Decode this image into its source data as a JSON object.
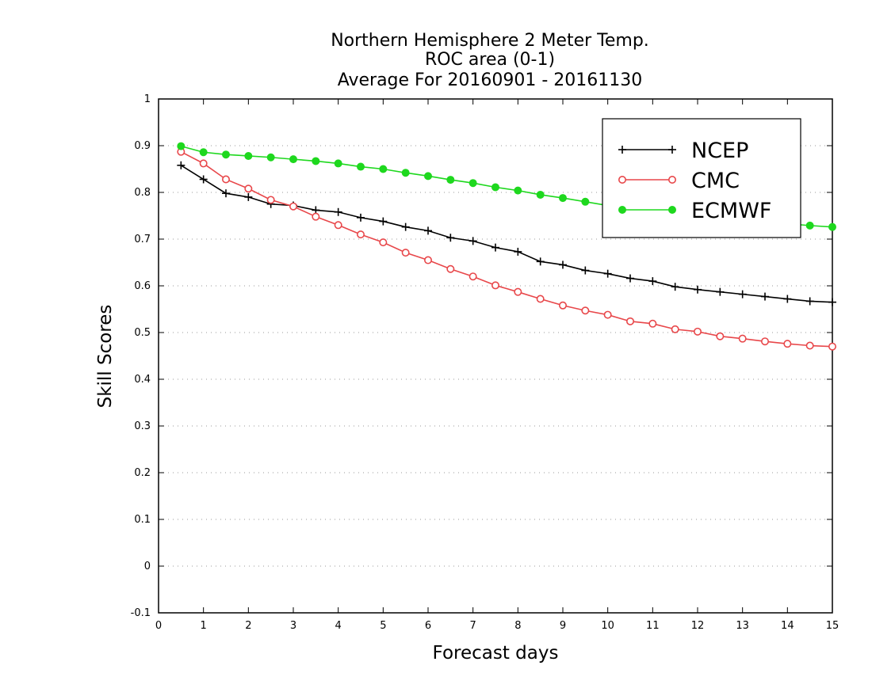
{
  "chart_data": {
    "type": "line",
    "title_lines": [
      "Northern Hemisphere 2 Meter Temp.",
      "ROC area (0-1)",
      "Average For 20160901 - 20161130"
    ],
    "xlabel": "Forecast days",
    "ylabel": "Skill Scores",
    "xlim": [
      0,
      15
    ],
    "ylim": [
      -0.1,
      1
    ],
    "x_ticks": [
      0,
      1,
      2,
      3,
      4,
      5,
      6,
      7,
      8,
      9,
      10,
      11,
      12,
      13,
      14,
      15
    ],
    "x_tick_labels": [
      "0",
      "1",
      "2",
      "3",
      "4",
      "5",
      "6",
      "7",
      "8",
      "9",
      "10",
      "11",
      "12",
      "13",
      "14",
      "15"
    ],
    "y_ticks": [
      -0.1,
      0,
      0.1,
      0.2,
      0.3,
      0.4,
      0.5,
      0.6,
      0.7,
      0.8,
      0.9,
      1
    ],
    "y_tick_labels": [
      "-0.1",
      "0",
      "0.1",
      "0.2",
      "0.3",
      "0.4",
      "0.5",
      "0.6",
      "0.7",
      "0.8",
      "0.9",
      "1"
    ],
    "grid": "horizontal-dotted",
    "legend_position": "top-right",
    "x": [
      0.5,
      1,
      1.5,
      2,
      2.5,
      3,
      3.5,
      4,
      4.5,
      5,
      5.5,
      6,
      6.5,
      7,
      7.5,
      8,
      8.5,
      9,
      9.5,
      10,
      10.5,
      11,
      11.5,
      12,
      12.5,
      13,
      13.5,
      14,
      14.5,
      15
    ],
    "series": [
      {
        "name": "NCEP",
        "color": "#000000",
        "marker": "plus",
        "values": [
          0.858,
          0.828,
          0.798,
          0.79,
          0.775,
          0.772,
          0.762,
          0.758,
          0.746,
          0.738,
          0.726,
          0.718,
          0.703,
          0.696,
          0.682,
          0.673,
          0.652,
          0.645,
          0.633,
          0.626,
          0.616,
          0.61,
          0.598,
          0.592,
          0.587,
          0.582,
          0.577,
          0.572,
          0.567,
          0.565
        ]
      },
      {
        "name": "CMC",
        "color": "#e8474a",
        "marker": "open-circle",
        "values": [
          0.887,
          0.862,
          0.828,
          0.808,
          0.784,
          0.77,
          0.748,
          0.73,
          0.71,
          0.693,
          0.671,
          0.655,
          0.636,
          0.62,
          0.601,
          0.587,
          0.572,
          0.558,
          0.547,
          0.538,
          0.524,
          0.519,
          0.507,
          0.502,
          0.492,
          0.487,
          0.481,
          0.476,
          0.472,
          0.47
        ]
      },
      {
        "name": "ECMWF",
        "color": "#1ed81e",
        "marker": "filled-circle",
        "values": [
          0.899,
          0.886,
          0.881,
          0.878,
          0.875,
          0.871,
          0.867,
          0.862,
          0.855,
          0.85,
          0.842,
          0.835,
          0.827,
          0.82,
          0.811,
          0.804,
          0.795,
          0.788,
          0.78,
          0.772,
          0.765,
          0.758,
          0.752,
          0.747,
          0.743,
          0.739,
          0.736,
          0.733,
          0.729,
          0.726
        ]
      }
    ]
  }
}
